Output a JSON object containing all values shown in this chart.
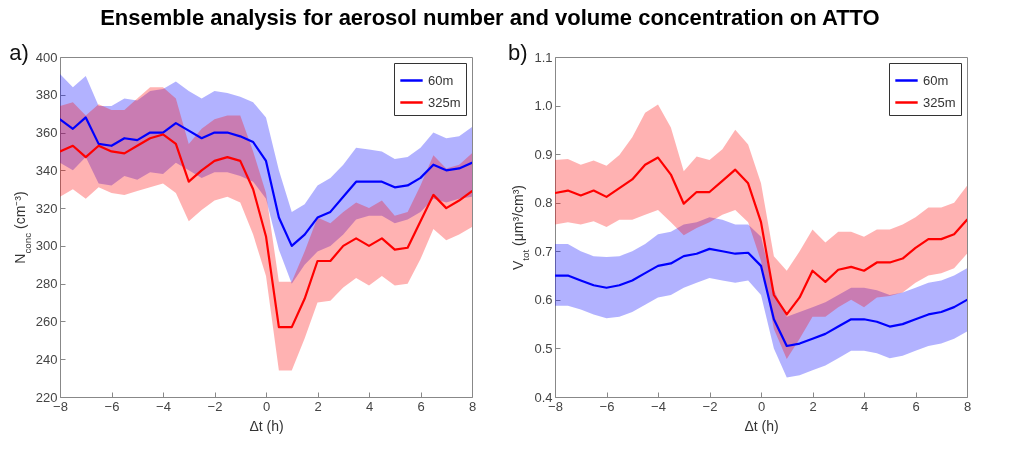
{
  "chart_data": [
    {
      "type": "line",
      "title": "Ensemble analysis for aerosol number and volume concentration on ATTO",
      "annotations": [
        "a)"
      ],
      "xlabel": "Δt (h)",
      "ylabel": "N$_{conc}$ (cm⁻³)",
      "legend": "top right",
      "grid": false,
      "xlim": [
        -8,
        8
      ],
      "xticks": [
        -8,
        -6,
        -4,
        -2,
        0,
        2,
        4,
        6,
        8
      ],
      "ylim": [
        220,
        400
      ],
      "yticks": [
        220,
        240,
        260,
        280,
        300,
        320,
        340,
        360,
        380,
        400
      ],
      "x": [
        -8,
        -7.5,
        -7,
        -6.5,
        -6,
        -5.5,
        -5,
        -4.5,
        -4,
        -3.5,
        -3,
        -2.5,
        -2,
        -1.5,
        -1,
        -0.5,
        0,
        0.5,
        1,
        1.5,
        2,
        2.5,
        3,
        3.5,
        4,
        4.5,
        5,
        5.5,
        6,
        6.5,
        7,
        7.5,
        8
      ],
      "series": [
        {
          "name": "60m",
          "color": "#0000ff",
          "values": [
            367,
            362,
            368,
            354,
            353,
            357,
            356,
            360,
            360,
            365,
            361,
            357,
            360,
            360,
            358,
            355,
            345,
            315,
            300,
            306,
            315,
            318,
            326,
            334,
            334,
            334,
            331,
            332,
            336,
            343,
            340,
            341,
            344
          ],
          "lower": [
            344,
            340,
            347,
            333,
            332,
            337,
            335,
            339,
            338,
            344,
            340,
            336,
            339,
            339,
            337,
            334,
            325,
            298,
            280,
            290,
            297,
            300,
            306,
            314,
            316,
            316,
            312,
            314,
            318,
            325,
            323,
            325,
            326
          ],
          "upper": [
            391,
            384,
            390,
            374,
            374,
            378,
            377,
            382,
            383,
            387,
            382,
            378,
            382,
            381,
            379,
            376,
            368,
            340,
            318,
            322,
            332,
            336,
            343,
            352,
            351,
            350,
            346,
            347,
            352,
            360,
            357,
            358,
            363
          ]
        },
        {
          "name": "325m",
          "color": "#ff0000",
          "values": [
            350,
            353,
            347,
            353,
            350,
            349,
            353,
            357,
            359,
            354,
            334,
            340,
            345,
            347,
            345,
            330,
            305,
            257,
            257,
            272,
            292,
            292,
            300,
            304,
            300,
            304,
            298,
            299,
            313,
            327,
            320,
            324,
            329
          ],
          "lower": [
            326,
            330,
            325,
            331,
            328,
            327,
            329,
            331,
            333,
            328,
            313,
            319,
            324,
            326,
            323,
            306,
            284,
            234,
            234,
            251,
            270,
            271,
            278,
            283,
            279,
            284,
            279,
            280,
            293,
            309,
            303,
            306,
            310
          ],
          "upper": [
            374,
            376,
            369,
            375,
            372,
            372,
            378,
            384,
            384,
            378,
            354,
            362,
            367,
            369,
            369,
            350,
            328,
            281,
            281,
            297,
            315,
            312,
            318,
            323,
            320,
            324,
            316,
            318,
            332,
            348,
            341,
            343,
            349
          ]
        }
      ]
    },
    {
      "type": "line",
      "annotations": [
        "b)"
      ],
      "xlabel": "Δt (h)",
      "ylabel": "V$_{tot}$ (μm³/cm³)",
      "legend": "top right",
      "grid": false,
      "xlim": [
        -8,
        8
      ],
      "xticks": [
        -8,
        -6,
        -4,
        -2,
        0,
        2,
        4,
        6,
        8
      ],
      "ylim": [
        0.4,
        1.1
      ],
      "yticks": [
        {
          "value": 0.4,
          "label": "0.4"
        },
        {
          "value": 0.5,
          "label": "0.5"
        },
        {
          "value": 0.6,
          "label": "0.6"
        },
        {
          "value": 0.7,
          "label": "0.7"
        },
        {
          "value": 0.8,
          "label": "0.8"
        },
        {
          "value": 0.9,
          "label": "0.9"
        },
        {
          "value": 1.0,
          "label": "1.0"
        },
        {
          "value": 1.1,
          "label": "1.1"
        }
      ],
      "x": [
        -8,
        -7.5,
        -7,
        -6.5,
        -6,
        -5.5,
        -5,
        -4.5,
        -4,
        -3.5,
        -3,
        -2.5,
        -2,
        -1.5,
        -1,
        -0.5,
        0,
        0.5,
        1,
        1.5,
        2,
        2.5,
        3,
        3.5,
        4,
        4.5,
        5,
        5.5,
        6,
        6.5,
        7,
        7.5,
        8
      ],
      "series": [
        {
          "name": "60m",
          "color": "#0000ff",
          "values": [
            0.65,
            0.65,
            0.64,
            0.63,
            0.625,
            0.63,
            0.64,
            0.655,
            0.67,
            0.675,
            0.69,
            0.695,
            0.705,
            0.7,
            0.695,
            0.697,
            0.67,
            0.56,
            0.505,
            0.51,
            0.52,
            0.53,
            0.545,
            0.56,
            0.56,
            0.555,
            0.545,
            0.55,
            0.56,
            0.57,
            0.575,
            0.585,
            0.6
          ],
          "lower": [
            0.588,
            0.588,
            0.58,
            0.57,
            0.562,
            0.565,
            0.575,
            0.59,
            0.605,
            0.61,
            0.625,
            0.635,
            0.645,
            0.64,
            0.635,
            0.64,
            0.61,
            0.5,
            0.44,
            0.445,
            0.455,
            0.465,
            0.48,
            0.495,
            0.495,
            0.49,
            0.48,
            0.485,
            0.495,
            0.505,
            0.51,
            0.52,
            0.535
          ],
          "upper": [
            0.715,
            0.715,
            0.7,
            0.69,
            0.688,
            0.69,
            0.7,
            0.715,
            0.735,
            0.74,
            0.755,
            0.76,
            0.77,
            0.765,
            0.755,
            0.755,
            0.73,
            0.62,
            0.565,
            0.575,
            0.585,
            0.595,
            0.61,
            0.625,
            0.625,
            0.62,
            0.61,
            0.615,
            0.625,
            0.635,
            0.64,
            0.65,
            0.665
          ]
        },
        {
          "name": "325m",
          "color": "#ff0000",
          "values": [
            0.82,
            0.825,
            0.815,
            0.825,
            0.812,
            0.83,
            0.848,
            0.878,
            0.893,
            0.858,
            0.798,
            0.822,
            0.822,
            0.845,
            0.868,
            0.84,
            0.76,
            0.61,
            0.57,
            0.605,
            0.66,
            0.637,
            0.662,
            0.668,
            0.66,
            0.677,
            0.677,
            0.685,
            0.707,
            0.725,
            0.725,
            0.735,
            0.765
          ],
          "lower": [
            0.755,
            0.76,
            0.755,
            0.762,
            0.75,
            0.765,
            0.765,
            0.775,
            0.785,
            0.76,
            0.733,
            0.748,
            0.76,
            0.775,
            0.785,
            0.76,
            0.68,
            0.54,
            0.478,
            0.52,
            0.565,
            0.565,
            0.585,
            0.6,
            0.585,
            0.605,
            0.608,
            0.615,
            0.635,
            0.65,
            0.655,
            0.665,
            0.695
          ],
          "upper": [
            0.888,
            0.89,
            0.878,
            0.887,
            0.876,
            0.898,
            0.935,
            0.985,
            1.002,
            0.955,
            0.865,
            0.895,
            0.888,
            0.91,
            0.95,
            0.92,
            0.84,
            0.69,
            0.66,
            0.7,
            0.745,
            0.718,
            0.74,
            0.74,
            0.73,
            0.745,
            0.745,
            0.755,
            0.77,
            0.79,
            0.79,
            0.8,
            0.835
          ]
        }
      ]
    }
  ]
}
